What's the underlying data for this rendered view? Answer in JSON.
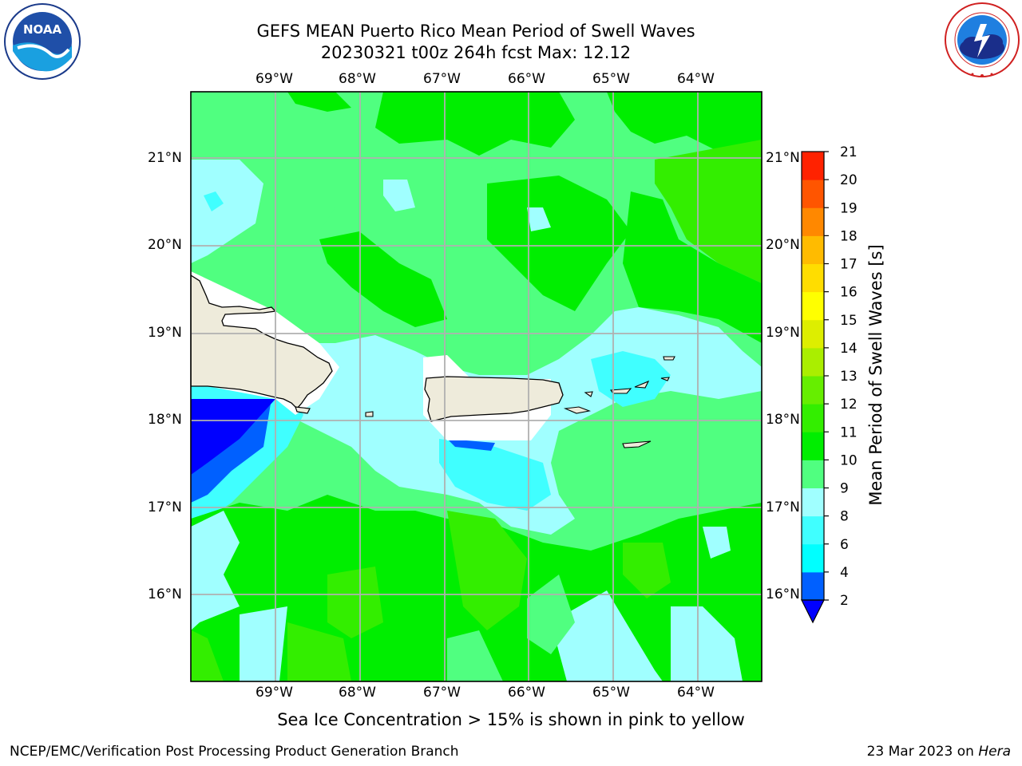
{
  "header": {
    "title_line1": "GEFS MEAN Puerto Rico Mean Period of Swell Waves",
    "title_line2": "20230321 t00z 264h fcst   Max: 12.12"
  },
  "logos": {
    "left": {
      "name": "noaa-logo",
      "text": "NOAA",
      "ring_text": "NATIONAL OCEANIC AND ATMOSPHERIC ADMINISTRATION · U.S. DEPARTMENT OF COMMERCE"
    },
    "right": {
      "name": "nws-logo",
      "ring_text": "NATIONAL WEATHER SERVICE"
    }
  },
  "map": {
    "lon_labels": [
      "69°W",
      "68°W",
      "67°W",
      "66°W",
      "65°W",
      "64°W"
    ],
    "lat_labels": [
      "21°N",
      "20°N",
      "19°N",
      "18°N",
      "17°N",
      "16°N"
    ],
    "land_color": "#eeebdb",
    "grid_color": "#b0b0b0"
  },
  "colorbar": {
    "label": "Mean Period of Swell Waves [s]",
    "ticks": [
      "2",
      "4",
      "6",
      "8",
      "9",
      "10",
      "11",
      "12",
      "13",
      "14",
      "15",
      "16",
      "17",
      "18",
      "19",
      "20",
      "21"
    ],
    "colors": [
      "#0060ff",
      "#00ffff",
      "#40ffff",
      "#a0ffff",
      "#50ff80",
      "#00ee00",
      "#33ee00",
      "#66ee00",
      "#aaee00",
      "#ddee00",
      "#ffff00",
      "#ffdd00",
      "#ffbb00",
      "#ff8800",
      "#ff5500",
      "#ff2200"
    ],
    "under_color": "#0000ff"
  },
  "note": "Sea Ice Concentration > 15% is shown in pink to yellow",
  "footer": {
    "left": "NCEP/EMC/Verification Post Processing Product Generation Branch",
    "date": "23 Mar 2023 on ",
    "machine": "Hera"
  }
}
